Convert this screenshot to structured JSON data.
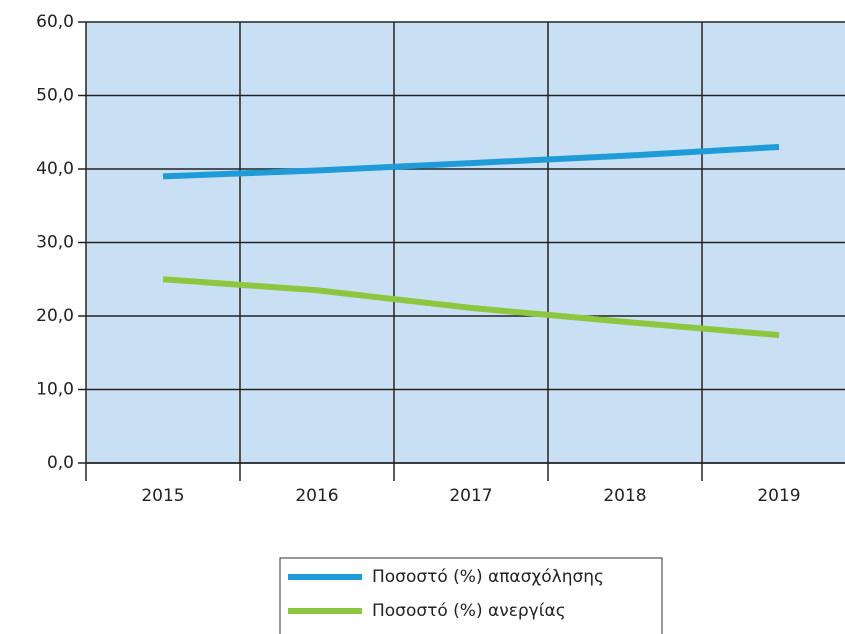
{
  "chart_data": {
    "type": "line",
    "categories": [
      "2015",
      "2016",
      "2017",
      "2018",
      "2019"
    ],
    "series": [
      {
        "name": "Ποσοστό (%) απασχόλησης",
        "color": "#1f9bd7",
        "values": [
          39.0,
          39.8,
          40.8,
          41.8,
          43.0
        ]
      },
      {
        "name": "Ποσοστό (%) ανεργίας",
        "color": "#8dc63f",
        "values": [
          25.0,
          23.5,
          21.1,
          19.2,
          17.4
        ]
      }
    ],
    "ylim": [
      0,
      60
    ],
    "yticks": [
      {
        "value": 0,
        "label": "0,0"
      },
      {
        "value": 10,
        "label": "10,0"
      },
      {
        "value": 20,
        "label": "20,0"
      },
      {
        "value": 30,
        "label": "30,0"
      },
      {
        "value": 40,
        "label": "40,0"
      },
      {
        "value": 50,
        "label": "50,0"
      },
      {
        "value": 60,
        "label": "60,0"
      }
    ],
    "grid": true,
    "plot_background": "#c9e0f4",
    "legend": "bottom"
  }
}
